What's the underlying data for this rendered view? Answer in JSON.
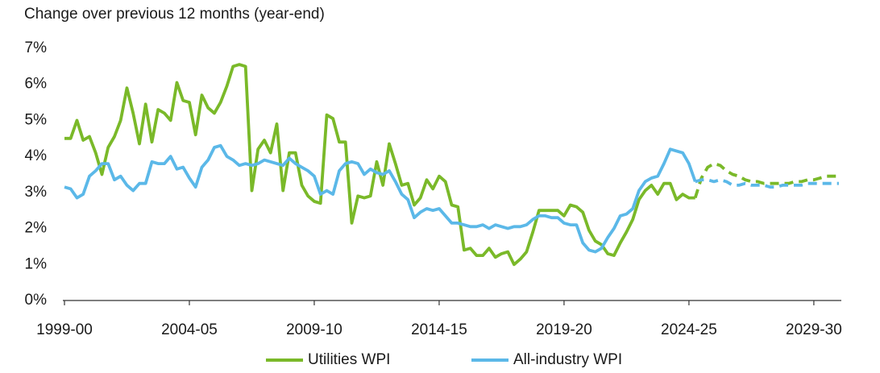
{
  "chart_data": {
    "type": "line",
    "ylabel": "Change over previous 12 months (year-end)",
    "xlim": [
      1999,
      2030.1
    ],
    "xticks": [
      {
        "value": 1999,
        "label": "1999-00"
      },
      {
        "value": 2004,
        "label": "2004-05"
      },
      {
        "value": 2009,
        "label": "2009-10"
      },
      {
        "value": 2014,
        "label": "2014-15"
      },
      {
        "value": 2019,
        "label": "2019-20"
      },
      {
        "value": 2024,
        "label": "2024-25"
      },
      {
        "value": 2029,
        "label": "2029-30"
      }
    ],
    "ylim": [
      0,
      7
    ],
    "yticks": [
      {
        "value": 0,
        "label": "0%"
      },
      {
        "value": 1,
        "label": "1%"
      },
      {
        "value": 2,
        "label": "2%"
      },
      {
        "value": 3,
        "label": "3%"
      },
      {
        "value": 4,
        "label": "4%"
      },
      {
        "value": 5,
        "label": "5%"
      },
      {
        "value": 6,
        "label": "6%"
      },
      {
        "value": 7,
        "label": "7%"
      }
    ],
    "grid": false,
    "legend": "bottom",
    "dashed_from": 2024.25,
    "x": [
      1999,
      1999.25,
      1999.5,
      1999.75,
      2000,
      2000.25,
      2000.5,
      2000.75,
      2001,
      2001.25,
      2001.5,
      2001.75,
      2002,
      2002.25,
      2002.5,
      2002.75,
      2003,
      2003.25,
      2003.5,
      2003.75,
      2004,
      2004.25,
      2004.5,
      2004.75,
      2005,
      2005.25,
      2005.5,
      2005.75,
      2006,
      2006.25,
      2006.5,
      2006.75,
      2007,
      2007.25,
      2007.5,
      2007.75,
      2008,
      2008.25,
      2008.5,
      2008.75,
      2009,
      2009.25,
      2009.5,
      2009.75,
      2010,
      2010.25,
      2010.5,
      2010.75,
      2011,
      2011.25,
      2011.5,
      2011.75,
      2012,
      2012.25,
      2012.5,
      2012.75,
      2013,
      2013.25,
      2013.5,
      2013.75,
      2014,
      2014.25,
      2014.5,
      2014.75,
      2015,
      2015.25,
      2015.5,
      2015.75,
      2016,
      2016.25,
      2016.5,
      2016.75,
      2017,
      2017.25,
      2017.5,
      2017.75,
      2018,
      2018.25,
      2018.5,
      2018.75,
      2019,
      2019.25,
      2019.5,
      2019.75,
      2020,
      2020.25,
      2020.5,
      2020.75,
      2021,
      2021.25,
      2021.5,
      2021.75,
      2022,
      2022.25,
      2022.5,
      2022.75,
      2023,
      2023.25,
      2023.5,
      2023.75,
      2024,
      2024.25,
      2024.5,
      2024.75,
      2025,
      2025.25,
      2025.5,
      2025.75,
      2026,
      2026.25,
      2026.5,
      2026.75,
      2027,
      2027.25,
      2027.5,
      2027.75,
      2028,
      2028.25,
      2028.5,
      2028.75,
      2029,
      2029.25,
      2029.5,
      2029.75,
      2030
    ],
    "series": [
      {
        "name": "Utilities WPI",
        "color": "#7ab929",
        "values": [
          4.5,
          4.5,
          5.0,
          4.45,
          4.55,
          4.1,
          3.5,
          4.25,
          4.55,
          5.0,
          5.9,
          5.2,
          4.35,
          5.45,
          4.4,
          5.3,
          5.2,
          5.0,
          6.05,
          5.55,
          5.5,
          4.6,
          5.7,
          5.35,
          5.2,
          5.5,
          5.95,
          6.5,
          6.55,
          6.5,
          3.05,
          4.2,
          4.45,
          4.1,
          4.9,
          3.05,
          4.1,
          4.1,
          3.2,
          2.9,
          2.75,
          2.7,
          5.15,
          5.05,
          4.4,
          4.4,
          2.15,
          2.9,
          2.85,
          2.9,
          3.85,
          3.2,
          4.35,
          3.8,
          3.2,
          3.25,
          2.65,
          2.85,
          3.35,
          3.1,
          3.45,
          3.3,
          2.65,
          2.6,
          1.4,
          1.45,
          1.25,
          1.25,
          1.45,
          1.2,
          1.3,
          1.35,
          1.0,
          1.15,
          1.35,
          1.9,
          2.5,
          2.5,
          2.5,
          2.5,
          2.35,
          2.65,
          2.6,
          2.45,
          1.95,
          1.65,
          1.55,
          1.3,
          1.25,
          1.6,
          1.9,
          2.25,
          2.8,
          3.05,
          3.2,
          2.95,
          3.25,
          3.25,
          2.8,
          2.95,
          2.85,
          2.85,
          3.4,
          3.7,
          3.8,
          3.75,
          3.6,
          3.5,
          3.45,
          3.35,
          3.3,
          3.3,
          3.25,
          3.25,
          3.25,
          3.25,
          3.25,
          3.3,
          3.3,
          3.35,
          3.35,
          3.4,
          3.45,
          3.45,
          3.45
        ]
      },
      {
        "name": "All-industry WPI",
        "color": "#5bb8e8",
        "values": [
          3.15,
          3.1,
          2.85,
          2.95,
          3.45,
          3.6,
          3.8,
          3.8,
          3.35,
          3.45,
          3.2,
          3.05,
          3.25,
          3.25,
          3.85,
          3.8,
          3.8,
          4.0,
          3.65,
          3.7,
          3.4,
          3.15,
          3.7,
          3.9,
          4.25,
          4.3,
          4.0,
          3.9,
          3.75,
          3.8,
          3.75,
          3.8,
          3.9,
          3.85,
          3.8,
          3.75,
          3.95,
          3.8,
          3.7,
          3.6,
          3.45,
          2.95,
          3.05,
          2.95,
          3.6,
          3.8,
          3.85,
          3.8,
          3.5,
          3.65,
          3.55,
          3.5,
          3.6,
          3.3,
          2.95,
          2.8,
          2.3,
          2.45,
          2.55,
          2.5,
          2.55,
          2.35,
          2.15,
          2.15,
          2.1,
          2.05,
          2.05,
          2.1,
          2.0,
          2.1,
          2.05,
          2.0,
          2.05,
          2.05,
          2.1,
          2.25,
          2.35,
          2.35,
          2.3,
          2.3,
          2.15,
          2.1,
          2.1,
          1.6,
          1.4,
          1.35,
          1.45,
          1.75,
          2.0,
          2.35,
          2.4,
          2.55,
          3.05,
          3.3,
          3.4,
          3.45,
          3.8,
          4.2,
          4.15,
          4.1,
          3.8,
          3.3,
          3.35,
          3.35,
          3.3,
          3.35,
          3.3,
          3.2,
          3.2,
          3.25,
          3.2,
          3.2,
          3.2,
          3.15,
          3.15,
          3.2,
          3.2,
          3.2,
          3.2,
          3.25,
          3.25,
          3.25,
          3.25,
          3.25,
          3.25
        ]
      }
    ]
  }
}
